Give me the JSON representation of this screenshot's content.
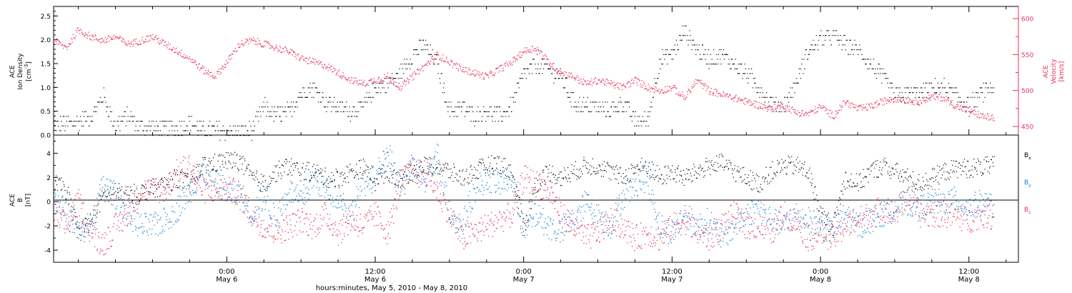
{
  "colors": {
    "axis": "#000000",
    "density": "#000000",
    "velocity": "#e8305a",
    "bx": "#000000",
    "by": "#1a7fd6",
    "bz": "#e8305a"
  },
  "top_panel": {
    "left_label_line1": "ACE",
    "left_label_line2": "Ion Density",
    "left_unit_base": "[cm",
    "left_unit_exp": "-3",
    "left_unit_close": "]",
    "right_label_line1": "ACE",
    "right_label_line2": "Velocity",
    "right_label_line3": "[km/s]",
    "left_ticks": [
      "0.0",
      "0.5",
      "1.0",
      "1.5",
      "2.0",
      "2.5"
    ],
    "right_ticks": [
      "450",
      "500",
      "550",
      "600"
    ]
  },
  "bottom_panel": {
    "label_line1": "ACE",
    "label_line2": "B",
    "label_line3": "[nT]",
    "ticks": [
      "-4",
      "-2",
      "0",
      "2",
      "4"
    ],
    "legend": [
      {
        "base": "B",
        "sub": "x",
        "color_key": "bx"
      },
      {
        "base": "B",
        "sub": "y",
        "color_key": "by"
      },
      {
        "base": "B",
        "sub": "z",
        "color_key": "bz"
      }
    ]
  },
  "x_axis": {
    "ticks": [
      {
        "time": "0:00",
        "date": "May 6"
      },
      {
        "time": "12:00",
        "date": "May 6"
      },
      {
        "time": "0:00",
        "date": "May 7"
      },
      {
        "time": "12:00",
        "date": "May 7"
      },
      {
        "time": "0:00",
        "date": "May 8"
      },
      {
        "time": "12:00",
        "date": "May 8"
      }
    ],
    "caption": "hours:minutes, May  5, 2010 - May  8, 2010"
  },
  "chart_data": [
    {
      "type": "scatter",
      "panel": "top",
      "x_unit": "hours since 2010-05-05 00:00",
      "xlim": [
        10,
        88
      ],
      "series": [
        {
          "name": "Ion Density",
          "axis": "left",
          "ylim": [
            0,
            2.7
          ],
          "x": [
            10,
            12,
            13,
            14,
            15,
            16,
            17,
            18,
            19,
            20,
            21,
            22,
            23,
            24,
            25,
            26,
            27,
            28,
            29,
            30,
            31,
            32,
            33,
            34,
            35,
            36,
            37,
            38,
            39,
            40,
            41,
            42,
            43,
            44,
            45,
            46,
            47,
            48,
            49,
            50,
            51,
            52,
            53,
            54,
            55,
            56,
            57,
            58,
            59,
            60,
            61,
            62,
            63,
            64,
            65,
            66,
            67,
            68,
            69,
            70,
            71,
            72,
            73,
            74,
            75,
            76,
            77,
            78,
            79,
            80,
            81,
            82,
            83,
            84,
            85,
            86
          ],
          "y": [
            0.2,
            0.3,
            0.4,
            0.8,
            0.2,
            0.4,
            0.2,
            0.15,
            0.15,
            0.15,
            0.3,
            0.1,
            0.1,
            0.1,
            0.1,
            0.1,
            0.6,
            0.4,
            0.5,
            0.9,
            1.0,
            0.7,
            0.6,
            0.5,
            0.6,
            1.0,
            1.1,
            1.3,
            1.7,
            1.9,
            1.5,
            0.5,
            0.6,
            0.4,
            0.5,
            0.4,
            0.6,
            1.3,
            1.5,
            1.4,
            1.2,
            0.7,
            0.6,
            0.6,
            0.5,
            0.7,
            0.3,
            0.3,
            1.6,
            1.7,
            2.2,
            1.8,
            1.6,
            1.7,
            1.5,
            1.3,
            1.0,
            0.7,
            0.6,
            1.1,
            1.8,
            2.0,
            2.1,
            1.9,
            1.8,
            1.5,
            1.2,
            0.8,
            0.9,
            0.9,
            1.0,
            1.0,
            0.8,
            0.6,
            0.9,
            1.0
          ]
        },
        {
          "name": "Velocity",
          "axis": "right",
          "ylim": [
            438,
            617
          ],
          "x": [
            10,
            11,
            12,
            13,
            14,
            15,
            16,
            17,
            18,
            19,
            20,
            21,
            22,
            23,
            24,
            25,
            26,
            27,
            28,
            29,
            30,
            31,
            32,
            33,
            34,
            35,
            36,
            37,
            38,
            39,
            40,
            41,
            42,
            43,
            44,
            45,
            46,
            47,
            48,
            49,
            50,
            51,
            52,
            53,
            54,
            55,
            56,
            57,
            58,
            59,
            60,
            61,
            62,
            63,
            64,
            65,
            66,
            67,
            68,
            69,
            70,
            71,
            72,
            73,
            74,
            75,
            76,
            77,
            78,
            79,
            80,
            81,
            82,
            83,
            84,
            85,
            86
          ],
          "y": [
            570,
            560,
            585,
            575,
            570,
            575,
            565,
            570,
            575,
            565,
            555,
            545,
            530,
            520,
            540,
            565,
            570,
            565,
            560,
            555,
            545,
            540,
            535,
            525,
            515,
            510,
            515,
            520,
            505,
            520,
            535,
            550,
            540,
            530,
            525,
            520,
            530,
            540,
            555,
            560,
            540,
            525,
            520,
            510,
            515,
            510,
            505,
            515,
            505,
            500,
            505,
            490,
            515,
            500,
            495,
            490,
            485,
            480,
            475,
            480,
            470,
            468,
            478,
            465,
            485,
            475,
            478,
            485,
            490,
            487,
            485,
            492,
            490,
            478,
            472,
            465,
            462
          ]
        }
      ]
    },
    {
      "type": "scatter",
      "panel": "bottom",
      "x_unit": "hours since 2010-05-05 00:00",
      "xlim": [
        10,
        88
      ],
      "ylim": [
        -5,
        5.5
      ],
      "series": [
        {
          "name": "Bx",
          "x": [
            10,
            11,
            12,
            13,
            14,
            15,
            16,
            17,
            18,
            19,
            20,
            21,
            22,
            23,
            24,
            25,
            26,
            27,
            28,
            29,
            30,
            31,
            32,
            33,
            34,
            35,
            36,
            37,
            38,
            39,
            40,
            41,
            42,
            43,
            44,
            45,
            46,
            47,
            48,
            49,
            50,
            51,
            52,
            53,
            54,
            55,
            56,
            57,
            58,
            59,
            60,
            61,
            62,
            63,
            64,
            65,
            66,
            67,
            68,
            69,
            70,
            71,
            72,
            73,
            74,
            75,
            76,
            77,
            78,
            79,
            80,
            81,
            82,
            83,
            84,
            85,
            86
          ],
          "y": [
            1.5,
            1.0,
            -2.5,
            -1.5,
            0.5,
            0.8,
            0.6,
            0.8,
            1.0,
            1.5,
            2.0,
            1.5,
            3.0,
            3.2,
            3.4,
            3.4,
            2.0,
            1.5,
            2.5,
            3.0,
            2.5,
            2.5,
            2.0,
            2.0,
            2.5,
            2.8,
            2.0,
            2.5,
            2.0,
            2.5,
            3.0,
            3.0,
            2.5,
            2.0,
            2.5,
            3.0,
            3.2,
            2.5,
            -2.0,
            1.5,
            2.5,
            2.0,
            2.5,
            3.0,
            3.0,
            2.5,
            2.0,
            2.8,
            3.0,
            2.0,
            2.5,
            2.0,
            2.5,
            3.0,
            3.2,
            2.5,
            2.0,
            1.5,
            2.5,
            3.0,
            3.0,
            2.5,
            -1.0,
            -2.0,
            2.0,
            1.5,
            2.5,
            3.0,
            2.5,
            2.0,
            1.5,
            2.0,
            2.5,
            2.8,
            2.8,
            2.9,
            3.0
          ]
        },
        {
          "name": "By",
          "x": [
            10,
            11,
            12,
            13,
            14,
            15,
            16,
            17,
            18,
            19,
            20,
            21,
            22,
            23,
            24,
            25,
            26,
            27,
            28,
            29,
            30,
            31,
            32,
            33,
            34,
            35,
            36,
            37,
            38,
            39,
            40,
            41,
            42,
            43,
            44,
            45,
            46,
            47,
            48,
            49,
            50,
            51,
            52,
            53,
            54,
            55,
            56,
            57,
            58,
            59,
            60,
            61,
            62,
            63,
            64,
            65,
            66,
            67,
            68,
            69,
            70,
            71,
            72,
            73,
            74,
            75,
            76,
            77,
            78,
            79,
            80,
            81,
            82,
            83,
            84,
            85,
            86
          ],
          "y": [
            0.5,
            -1.0,
            -2.5,
            -2.0,
            1.5,
            0.5,
            -1.0,
            -2.0,
            -2.0,
            -1.5,
            -0.5,
            1.0,
            2.5,
            1.5,
            1.0,
            0.5,
            -1.0,
            0.5,
            -1.5,
            1.0,
            0.0,
            2.0,
            1.0,
            0.5,
            -1.0,
            1.5,
            2.0,
            4.0,
            1.0,
            3.0,
            1.5,
            4.0,
            -1.0,
            -2.0,
            1.0,
            2.0,
            1.5,
            2.0,
            -2.5,
            -1.0,
            -2.0,
            -2.5,
            -1.5,
            0.0,
            -1.0,
            -2.0,
            0.5,
            1.5,
            2.0,
            -2.0,
            -2.5,
            -1.0,
            -2.0,
            -1.5,
            -3.0,
            -2.0,
            -1.0,
            -0.5,
            -1.5,
            -2.0,
            -1.0,
            -1.5,
            -2.0,
            -2.5,
            -1.0,
            -2.0,
            -1.5,
            -1.0,
            -0.5,
            0.0,
            -0.5,
            0.0,
            0.0,
            0.2,
            -0.5,
            0.0,
            -0.5
          ]
        },
        {
          "name": "Bz",
          "x": [
            10,
            11,
            12,
            13,
            14,
            15,
            16,
            17,
            18,
            19,
            20,
            21,
            22,
            23,
            24,
            25,
            26,
            27,
            28,
            29,
            30,
            31,
            32,
            33,
            34,
            35,
            36,
            37,
            38,
            39,
            40,
            41,
            42,
            43,
            44,
            45,
            46,
            47,
            48,
            49,
            50,
            51,
            52,
            53,
            54,
            55,
            56,
            57,
            58,
            59,
            60,
            61,
            62,
            63,
            64,
            65,
            66,
            67,
            68,
            69,
            70,
            71,
            72,
            73,
            74,
            75,
            76,
            77,
            78,
            79,
            80,
            81,
            82,
            83,
            84,
            85,
            86
          ],
          "y": [
            -1.0,
            -2.0,
            0.0,
            -2.5,
            -3.5,
            -2.0,
            -1.0,
            1.0,
            1.0,
            1.0,
            2.5,
            3.0,
            1.0,
            1.0,
            1.0,
            0.8,
            -1.0,
            -2.0,
            -2.5,
            -2.0,
            -1.5,
            -2.0,
            -1.0,
            -2.5,
            -1.5,
            -2.0,
            -1.0,
            -2.5,
            1.5,
            2.5,
            2.5,
            1.0,
            -1.0,
            -3.0,
            -2.5,
            -2.0,
            -1.5,
            -1.0,
            2.0,
            1.5,
            1.0,
            -1.0,
            -2.0,
            -3.0,
            -2.5,
            -1.5,
            -2.0,
            -3.0,
            -2.5,
            -3.0,
            -2.0,
            -1.5,
            -2.5,
            -3.0,
            -2.0,
            -1.0,
            -2.0,
            -2.0,
            -2.5,
            -1.0,
            -1.5,
            -3.0,
            -2.5,
            -3.0,
            -2.0,
            -1.5,
            -1.0,
            -0.5,
            -1.0,
            0.5,
            -1.0,
            -1.0,
            -1.0,
            -1.2,
            -1.5,
            -1.0,
            -1.2
          ]
        }
      ]
    }
  ]
}
